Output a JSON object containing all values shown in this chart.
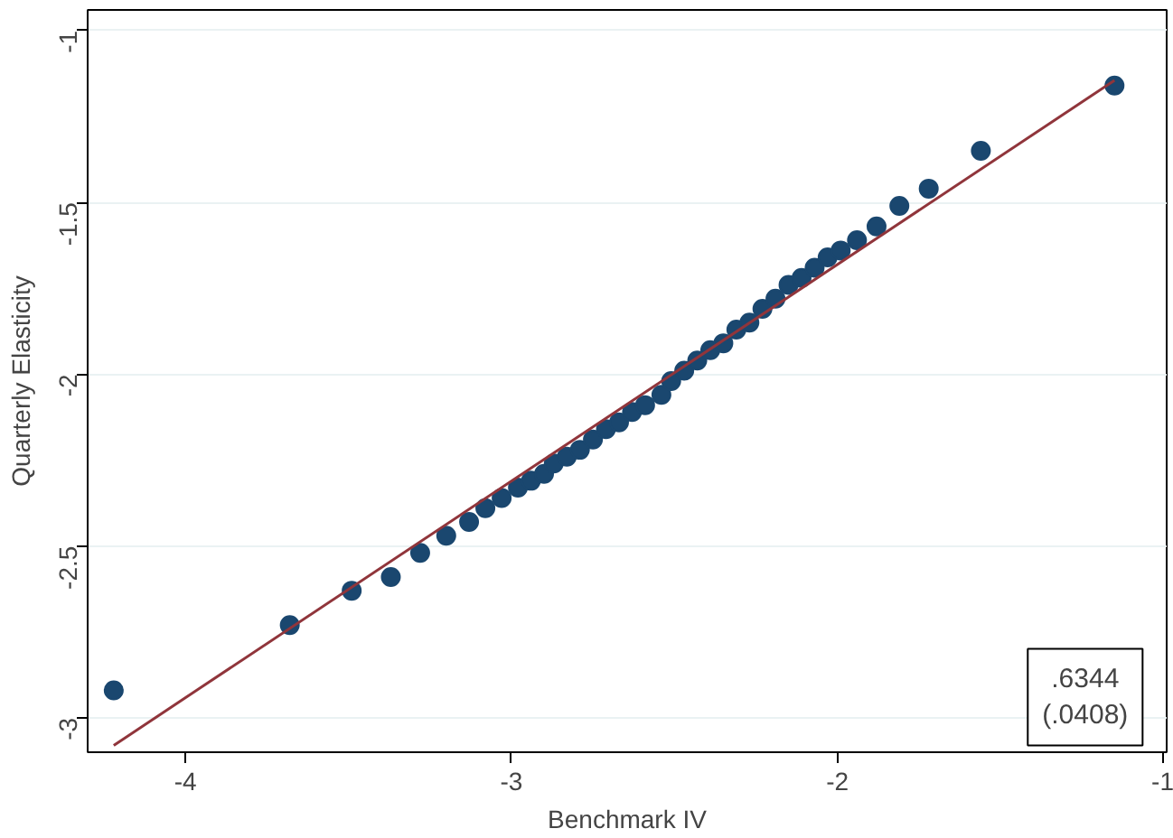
{
  "chart_data": {
    "type": "scatter",
    "xlabel": "Benchmark IV",
    "ylabel": "Quarterly Elasticity",
    "xlim": [
      -4.3,
      -0.99
    ],
    "ylim": [
      -3.1,
      -0.94
    ],
    "xticks": [
      -4,
      -3,
      -2,
      -1
    ],
    "yticks": [
      -3,
      -2.5,
      -2,
      -1.5,
      -1
    ],
    "grid": "y",
    "series": [
      {
        "marker": "circle",
        "color": "#1a476f",
        "x": [
          -4.22,
          -3.68,
          -3.49,
          -3.37,
          -3.28,
          -3.2,
          -3.13,
          -3.08,
          -3.03,
          -2.98,
          -2.94,
          -2.9,
          -2.87,
          -2.83,
          -2.79,
          -2.75,
          -2.71,
          -2.67,
          -2.63,
          -2.59,
          -2.54,
          -2.51,
          -2.47,
          -2.43,
          -2.39,
          -2.35,
          -2.31,
          -2.27,
          -2.23,
          -2.19,
          -2.15,
          -2.11,
          -2.07,
          -2.03,
          -1.99,
          -1.94,
          -1.88,
          -1.81,
          -1.72,
          -1.56,
          -1.15
        ],
        "values": [
          -2.92,
          -2.73,
          -2.63,
          -2.59,
          -2.52,
          -2.47,
          -2.43,
          -2.39,
          -2.36,
          -2.33,
          -2.31,
          -2.29,
          -2.26,
          -2.24,
          -2.22,
          -2.19,
          -2.16,
          -2.14,
          -2.11,
          -2.09,
          -2.06,
          -2.02,
          -1.99,
          -1.96,
          -1.93,
          -1.91,
          -1.87,
          -1.85,
          -1.81,
          -1.78,
          -1.74,
          -1.72,
          -1.69,
          -1.66,
          -1.64,
          -1.61,
          -1.57,
          -1.51,
          -1.46,
          -1.35,
          -1.16
        ]
      },
      {
        "type": "line",
        "marker": "none",
        "color": "#90353b",
        "x": [
          -4.22,
          -1.15
        ],
        "values": [
          -3.08,
          -1.145
        ]
      }
    ],
    "annotations": [
      ".6344",
      "(.0408)"
    ]
  }
}
